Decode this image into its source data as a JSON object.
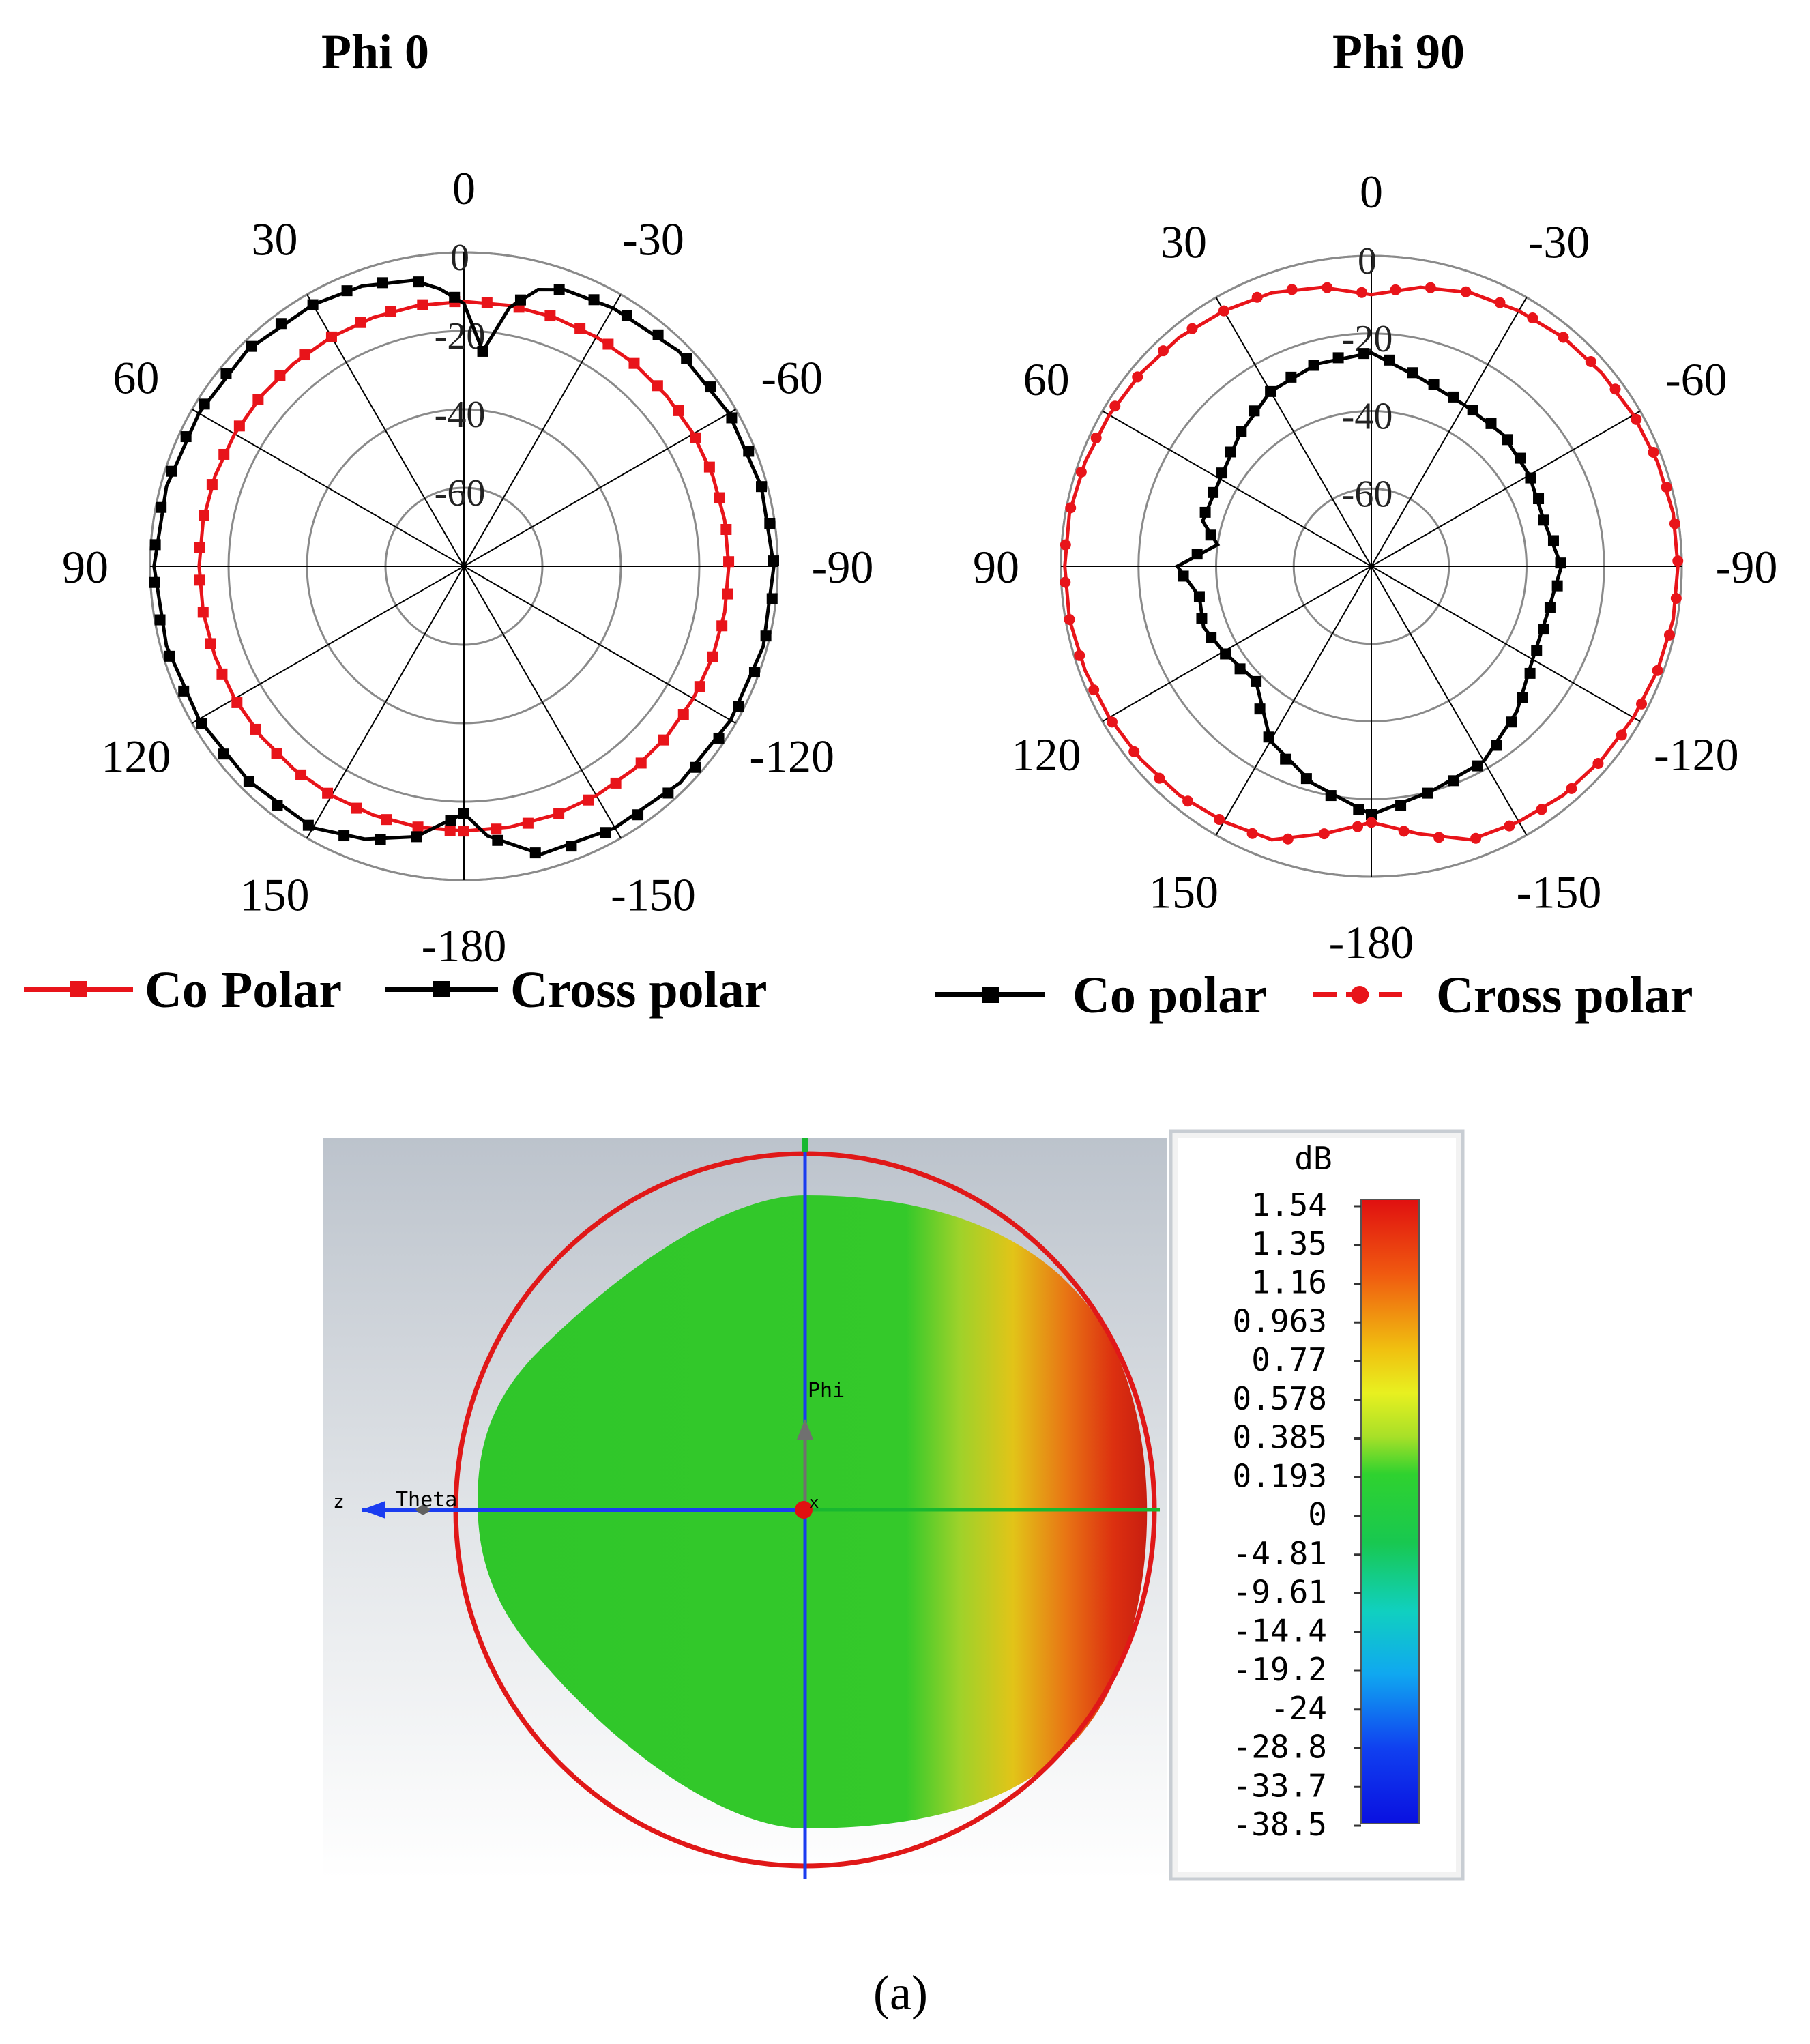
{
  "panel_label": "(a)",
  "chart_data": [
    {
      "type": "polar_line",
      "title": "Phi 0",
      "r_unit": "dB",
      "r_range": [
        -80,
        0
      ],
      "r_ticks": [
        0,
        -20,
        -40,
        -60
      ],
      "angle_ticks": [
        "-180",
        "-150",
        "-120",
        "-90",
        "-60",
        "-30",
        "0",
        "30",
        "60",
        "90",
        "120",
        "150"
      ],
      "series": [
        {
          "name": "Co Polar",
          "color": "#e8141a",
          "marker": "square",
          "theta": [
            -180,
            -170,
            -160,
            -150,
            -140,
            -130,
            -120,
            -110,
            -100,
            -90,
            -80,
            -70,
            -60,
            -50,
            -40,
            -30,
            -20,
            -10,
            0,
            10,
            20,
            30,
            40,
            50,
            60,
            70,
            80,
            90,
            100,
            110,
            120,
            130,
            140,
            150,
            160,
            170,
            180
          ],
          "values": [
            -12.5,
            -12.5,
            -12.5,
            -12.5,
            -12.5,
            -12.5,
            -12.5,
            -12.5,
            -12.5,
            -12.5,
            -12.5,
            -12.5,
            -12.5,
            -12.5,
            -12.5,
            -12.5,
            -12.5,
            -12.5,
            -12.5,
            -12.5,
            -12.5,
            -12.5,
            -12.5,
            -12.5,
            -12.5,
            -12.5,
            -12.5,
            -12.5,
            -12.5,
            -12.5,
            -12.5,
            -12.5,
            -12.5,
            -12.5,
            -12.5,
            -12.5,
            -12.5
          ]
        },
        {
          "name": "Cross polar",
          "color": "#000000",
          "marker": "square",
          "theta": [
            -180,
            -175,
            -165,
            -150,
            -135,
            -120,
            -105,
            -90,
            -75,
            -60,
            -45,
            -30,
            -20,
            -15,
            -10,
            -5,
            0,
            5,
            10,
            20,
            30,
            45,
            60,
            75,
            90,
            105,
            120,
            135,
            150,
            160,
            170,
            175,
            180
          ],
          "values": [
            -17,
            -11,
            -4,
            -3,
            -2,
            -1.5,
            -1,
            -1,
            -1.5,
            -2,
            -2.5,
            -4,
            -5,
            -7,
            -13,
            -25,
            -13,
            -9,
            -6,
            -4,
            -3,
            -2,
            -2,
            -1.5,
            -1,
            -1.5,
            -2,
            -2.5,
            -3,
            -6,
            -10,
            -14,
            -17
          ]
        }
      ]
    },
    {
      "type": "polar_line",
      "title": "Phi 90",
      "r_unit": "dB",
      "r_range": [
        -80,
        0
      ],
      "r_ticks": [
        0,
        -20,
        -40,
        -60
      ],
      "angle_ticks": [
        "-180",
        "-150",
        "-120",
        "-90",
        "-60",
        "-30",
        "0",
        "30",
        "60",
        "90",
        "120",
        "150"
      ],
      "series": [
        {
          "name": "Co polar",
          "color": "#000000",
          "marker": "square",
          "theta": [
            -180,
            -165,
            -150,
            -135,
            -120,
            -105,
            -90,
            -75,
            -60,
            -45,
            -30,
            -15,
            0,
            15,
            30,
            45,
            60,
            75,
            82,
            90,
            100,
            110,
            120,
            135,
            150,
            165,
            180
          ],
          "values": [
            -16,
            -20,
            -22,
            -27,
            -32,
            -33,
            -31,
            -34,
            -33,
            -32,
            -32,
            -30,
            -25,
            -26,
            -28,
            -32,
            -35,
            -35,
            -40,
            -30,
            -35,
            -34,
            -36,
            -38,
            -28,
            -22,
            -16
          ]
        },
        {
          "name": "Cross polar",
          "color": "#e8141a",
          "marker": "circle",
          "theta": [
            -180,
            -170,
            -160,
            -150,
            -140,
            -130,
            -120,
            -110,
            -100,
            -90,
            -80,
            -70,
            -60,
            -50,
            -40,
            -30,
            -20,
            -10,
            0,
            10,
            20,
            30,
            40,
            50,
            60,
            70,
            80,
            90,
            100,
            110,
            120,
            130,
            140,
            150,
            160,
            170,
            180
          ],
          "values": [
            -14,
            -10,
            -5,
            -4,
            -3,
            -2.5,
            -2,
            -1.5,
            -1,
            -1,
            -1,
            -1.5,
            -2,
            -2.5,
            -3,
            -4,
            -5,
            -7,
            -10,
            -7,
            -5,
            -4,
            -3,
            -2.5,
            -2,
            -1.5,
            -1,
            -1,
            -1,
            -1.5,
            -2,
            -2.5,
            -3,
            -4,
            -5,
            -10,
            -14
          ]
        }
      ]
    },
    {
      "type": "heatmap",
      "colorbar_unit": "dB",
      "colorbar_ticks": [
        "1.54",
        "1.35",
        "1.16",
        "0.963",
        "0.77",
        "0.578",
        "0.385",
        "0.193",
        "0",
        "-4.81",
        "-9.61",
        "-14.4",
        "-19.2",
        "-24",
        "-28.8",
        "-33.7",
        "-38.5"
      ],
      "axis_labels": {
        "z": "z",
        "theta": "Theta",
        "phi": "Phi",
        "x": "x"
      }
    }
  ]
}
